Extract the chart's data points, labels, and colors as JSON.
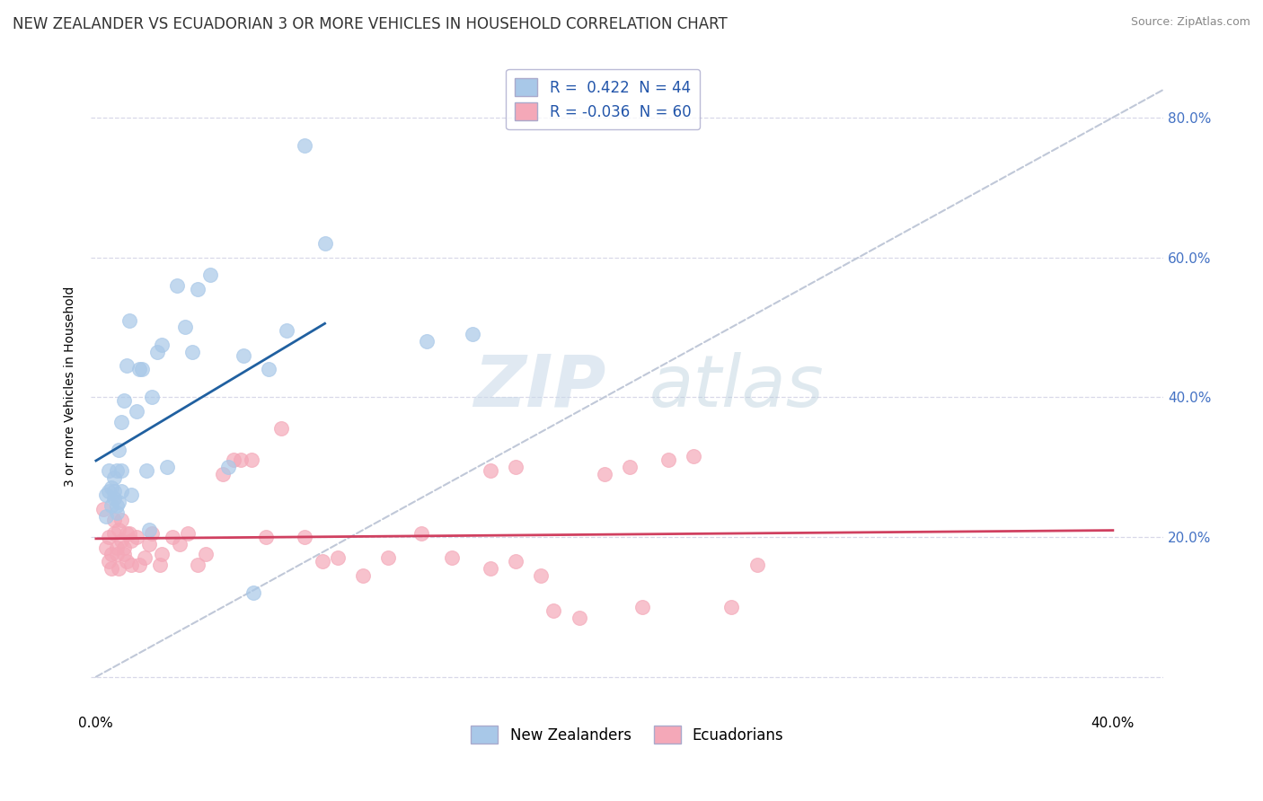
{
  "title": "NEW ZEALANDER VS ECUADORIAN 3 OR MORE VEHICLES IN HOUSEHOLD CORRELATION CHART",
  "source": "Source: ZipAtlas.com",
  "ylabel": "3 or more Vehicles in Household",
  "xlim": [
    -0.002,
    0.42
  ],
  "ylim": [
    -0.05,
    0.88
  ],
  "nz_R": 0.422,
  "nz_N": 44,
  "ec_R": -0.036,
  "ec_N": 60,
  "nz_color": "#a8c8e8",
  "ec_color": "#f4a8b8",
  "nz_line_color": "#2060a0",
  "ec_line_color": "#d04060",
  "diagonal_color": "#c0c8d8",
  "watermark_zip": "ZIP",
  "watermark_atlas": "atlas",
  "legend_label_nz": "New Zealanders",
  "legend_label_ec": "Ecuadorians",
  "nz_x": [
    0.004,
    0.004,
    0.005,
    0.005,
    0.006,
    0.006,
    0.007,
    0.007,
    0.007,
    0.008,
    0.008,
    0.008,
    0.009,
    0.009,
    0.01,
    0.01,
    0.01,
    0.011,
    0.012,
    0.013,
    0.014,
    0.016,
    0.017,
    0.018,
    0.02,
    0.021,
    0.022,
    0.024,
    0.026,
    0.028,
    0.032,
    0.035,
    0.038,
    0.04,
    0.045,
    0.052,
    0.058,
    0.062,
    0.068,
    0.075,
    0.082,
    0.09,
    0.13,
    0.148
  ],
  "nz_y": [
    0.23,
    0.26,
    0.265,
    0.295,
    0.245,
    0.27,
    0.255,
    0.265,
    0.285,
    0.235,
    0.245,
    0.295,
    0.25,
    0.325,
    0.265,
    0.365,
    0.295,
    0.395,
    0.445,
    0.51,
    0.26,
    0.38,
    0.44,
    0.44,
    0.295,
    0.21,
    0.4,
    0.465,
    0.475,
    0.3,
    0.56,
    0.5,
    0.465,
    0.555,
    0.575,
    0.3,
    0.46,
    0.12,
    0.44,
    0.495,
    0.76,
    0.62,
    0.48,
    0.49
  ],
  "ec_x": [
    0.003,
    0.004,
    0.005,
    0.005,
    0.006,
    0.006,
    0.007,
    0.007,
    0.008,
    0.008,
    0.009,
    0.009,
    0.01,
    0.01,
    0.011,
    0.011,
    0.012,
    0.012,
    0.013,
    0.014,
    0.014,
    0.016,
    0.017,
    0.019,
    0.021,
    0.022,
    0.025,
    0.026,
    0.03,
    0.033,
    0.036,
    0.04,
    0.043,
    0.05,
    0.054,
    0.057,
    0.061,
    0.067,
    0.073,
    0.082,
    0.089,
    0.095,
    0.105,
    0.115,
    0.128,
    0.14,
    0.155,
    0.165,
    0.215,
    0.25,
    0.155,
    0.165,
    0.175,
    0.18,
    0.19,
    0.2,
    0.21,
    0.225,
    0.235,
    0.26
  ],
  "ec_y": [
    0.24,
    0.185,
    0.165,
    0.2,
    0.175,
    0.155,
    0.205,
    0.225,
    0.175,
    0.185,
    0.155,
    0.21,
    0.195,
    0.225,
    0.175,
    0.185,
    0.205,
    0.165,
    0.205,
    0.16,
    0.195,
    0.2,
    0.16,
    0.17,
    0.19,
    0.205,
    0.16,
    0.175,
    0.2,
    0.19,
    0.205,
    0.16,
    0.175,
    0.29,
    0.31,
    0.31,
    0.31,
    0.2,
    0.355,
    0.2,
    0.165,
    0.17,
    0.145,
    0.17,
    0.205,
    0.17,
    0.295,
    0.3,
    0.1,
    0.1,
    0.155,
    0.165,
    0.145,
    0.095,
    0.085,
    0.29,
    0.3,
    0.31,
    0.315,
    0.16
  ],
  "xtick_positions": [
    0.0,
    0.1,
    0.2,
    0.3,
    0.4
  ],
  "xtick_labels": [
    "0.0%",
    "",
    "",
    "",
    "40.0%"
  ],
  "ytick_positions": [
    0.0,
    0.2,
    0.4,
    0.6,
    0.8
  ],
  "ytick_labels_right": [
    "",
    "20.0%",
    "40.0%",
    "60.0%",
    "80.0%"
  ],
  "grid_color": "#d8d8e8",
  "title_fontsize": 12,
  "axis_fontsize": 11,
  "legend_fontsize": 12
}
